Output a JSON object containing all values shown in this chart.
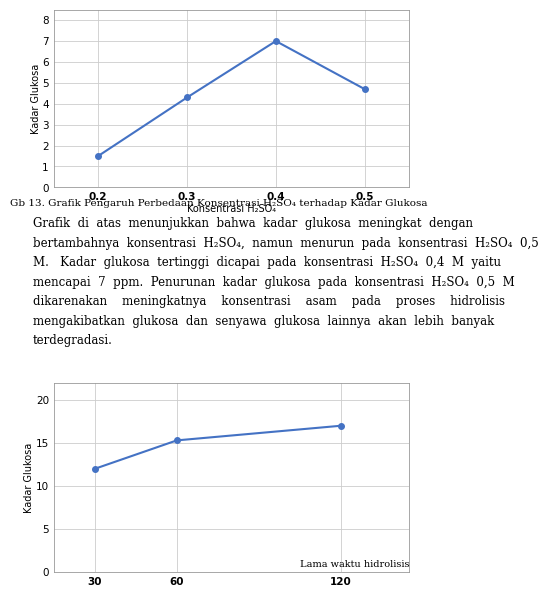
{
  "chart1": {
    "x": [
      0.2,
      0.3,
      0.4,
      0.5
    ],
    "y": [
      1.5,
      4.3,
      7.0,
      4.7
    ],
    "xlabel": "Konsentrasi H₂SO₄",
    "ylabel": "Kadar Glukosa",
    "xticks": [
      0.2,
      0.3,
      0.4,
      0.5
    ],
    "yticks": [
      0,
      1,
      2,
      3,
      4,
      5,
      6,
      7,
      8
    ],
    "ylim": [
      0,
      8.5
    ],
    "xlim": [
      0.15,
      0.55
    ],
    "caption": "Gb 13. Grafik Pengaruh Perbedaan Konsentrasi H₂SO₄ terhadap Kadar Glukosa",
    "line_color": "#4472C4",
    "marker": "o",
    "marker_size": 4,
    "line_width": 1.5
  },
  "chart2": {
    "x": [
      30,
      60,
      120
    ],
    "y": [
      12.0,
      15.3,
      17.0
    ],
    "xlabel": "Lama waktu hidrolisis",
    "ylabel": "Kadar Glukosa",
    "xticks": [
      30,
      60,
      120
    ],
    "yticks": [
      0,
      5,
      10,
      15,
      20
    ],
    "ylim": [
      0,
      22
    ],
    "xlim": [
      15,
      145
    ],
    "line_color": "#4472C4",
    "marker": "o",
    "marker_size": 4,
    "line_width": 1.5
  },
  "text_lines": [
    "Grafik  di  atas  menunjukkan  bahwa  kadar  glukosa  meningkat  dengan",
    "bertambahnya  konsentrasi  H₂SO₄,  namun  menurun  pada  konsentrasi  H₂SO₄  0,5",
    "M.   Kadar  glukosa  tertinggi  dicapai  pada  konsentrasi  H₂SO₄  0,4  M  yaitu",
    "mencapai  7  ppm.  Penurunan  kadar  glukosa  pada  konsentrasi  H₂SO₄  0,5  M",
    "dikarenakan    meningkatnya    konsentrasi    asam    pada    proses    hidrolisis",
    "mengakibatkan  glukosa  dan  senyawa  glukosa  lainnya  akan  lebih  banyak",
    "terdegradasi."
  ],
  "background_color": "#ffffff",
  "chart_bg": "#ffffff",
  "grid_color": "#cccccc",
  "text_fontsize": 8.5,
  "caption_fontsize": 7.5,
  "tick_fontsize": 7.5,
  "axis_label_fontsize": 7
}
